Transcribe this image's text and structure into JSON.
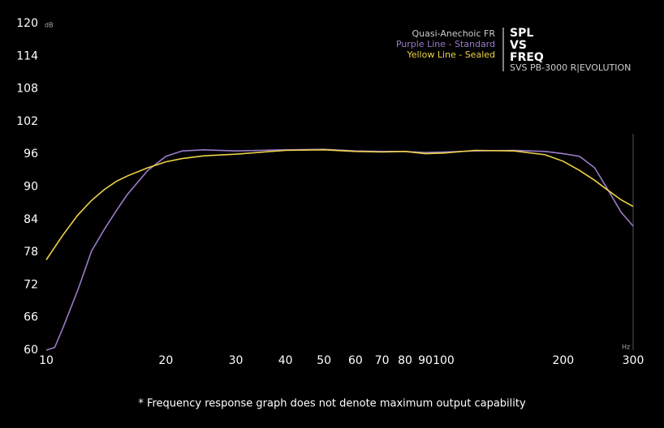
{
  "chart_data": {
    "type": "line",
    "title": [
      "SPL",
      "VS",
      "FREQ"
    ],
    "subtitle": "SVS PB-3000 R|EVOLUTION",
    "legend_title": "Quasi-Anechoic FR",
    "y_unit": "dB",
    "x_unit": "Hz",
    "footnote": "* Frequency response graph does not denote maximum output capability",
    "log_x": true,
    "grid": false,
    "x": [
      10,
      10.5,
      11,
      12,
      13,
      14,
      15,
      16,
      18,
      20,
      22,
      25,
      30,
      40,
      50,
      60,
      70,
      80,
      90,
      100,
      120,
      150,
      180,
      200,
      220,
      240,
      260,
      280,
      300
    ],
    "series": [
      {
        "name": "Purple Line - Standard",
        "color": "#9a7cc8",
        "values": [
          60,
          60.5,
          64,
          71,
          78.2,
          82.2,
          85.6,
          88.6,
          93,
          95.6,
          96.6,
          96.8,
          96.6,
          96.8,
          96.9,
          96.6,
          96.5,
          96.5,
          96.3,
          96.4,
          96.6,
          96.7,
          96.5,
          96.1,
          95.6,
          93.5,
          89.3,
          85.3,
          82.8
        ]
      },
      {
        "name": "Yellow Line - Sealed",
        "color": "#efd24a",
        "values": [
          76.6,
          78.9,
          81.1,
          84.8,
          87.5,
          89.5,
          91,
          92,
          93.5,
          94.6,
          95.2,
          95.7,
          96,
          96.7,
          96.8,
          96.5,
          96.4,
          96.5,
          96.1,
          96.2,
          96.7,
          96.6,
          95.9,
          94.7,
          93,
          91.2,
          89.3,
          87.6,
          86.4
        ]
      }
    ],
    "xlim": [
      10,
      300
    ],
    "xticks": [
      10,
      20,
      30,
      40,
      50,
      60,
      70,
      80,
      90,
      100,
      200,
      300
    ],
    "ylim": [
      60,
      120
    ],
    "yticks": [
      60,
      66,
      72,
      78,
      84,
      90,
      96,
      102,
      108,
      114,
      120
    ]
  }
}
